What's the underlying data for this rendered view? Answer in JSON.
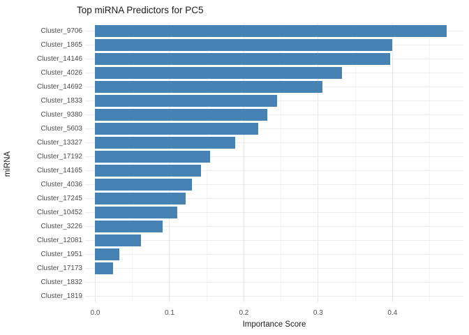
{
  "title": "Top miRNA Predictors for PC5",
  "chart_data": {
    "type": "bar",
    "orientation": "horizontal",
    "title": "Top miRNA Predictors for PC5",
    "xlabel": "Importance Score",
    "ylabel": "miRNA",
    "categories": [
      "Cluster_9706",
      "Cluster_1865",
      "Cluster_14146",
      "Cluster_4026",
      "Cluster_14692",
      "Cluster_1833",
      "Cluster_9380",
      "Cluster_5603",
      "Cluster_13327",
      "Cluster_17192",
      "Cluster_14165",
      "Cluster_4036",
      "Cluster_17245",
      "Cluster_10452",
      "Cluster_3226",
      "Cluster_12081",
      "Cluster_1951",
      "Cluster_17173",
      "Cluster_1832",
      "Cluster_1819"
    ],
    "values": [
      0.473,
      0.4,
      0.397,
      0.332,
      0.306,
      0.245,
      0.232,
      0.219,
      0.188,
      0.155,
      0.142,
      0.13,
      0.122,
      0.11,
      0.091,
      0.062,
      0.032,
      0.024,
      0.0,
      0.0
    ],
    "x_major_ticks": [
      0.0,
      0.1,
      0.2,
      0.3,
      0.4
    ],
    "x_major_tick_labels": [
      "0.0",
      "0.1",
      "0.2",
      "0.3",
      "0.4"
    ],
    "x_minor_ticks": [
      0.05,
      0.15,
      0.25,
      0.35,
      0.45
    ],
    "xlim": [
      -0.0136,
      0.4955
    ],
    "grid": true,
    "legend": false,
    "bar_color": "#4682B4"
  },
  "colors": {
    "bar": "#4682B4",
    "grid_major": "#e7e7e7",
    "grid_minor": "#f3f3f3",
    "row_grid": "#ececec",
    "tick_text": "#4d4d4d",
    "title_text": "#1a1a1a"
  }
}
